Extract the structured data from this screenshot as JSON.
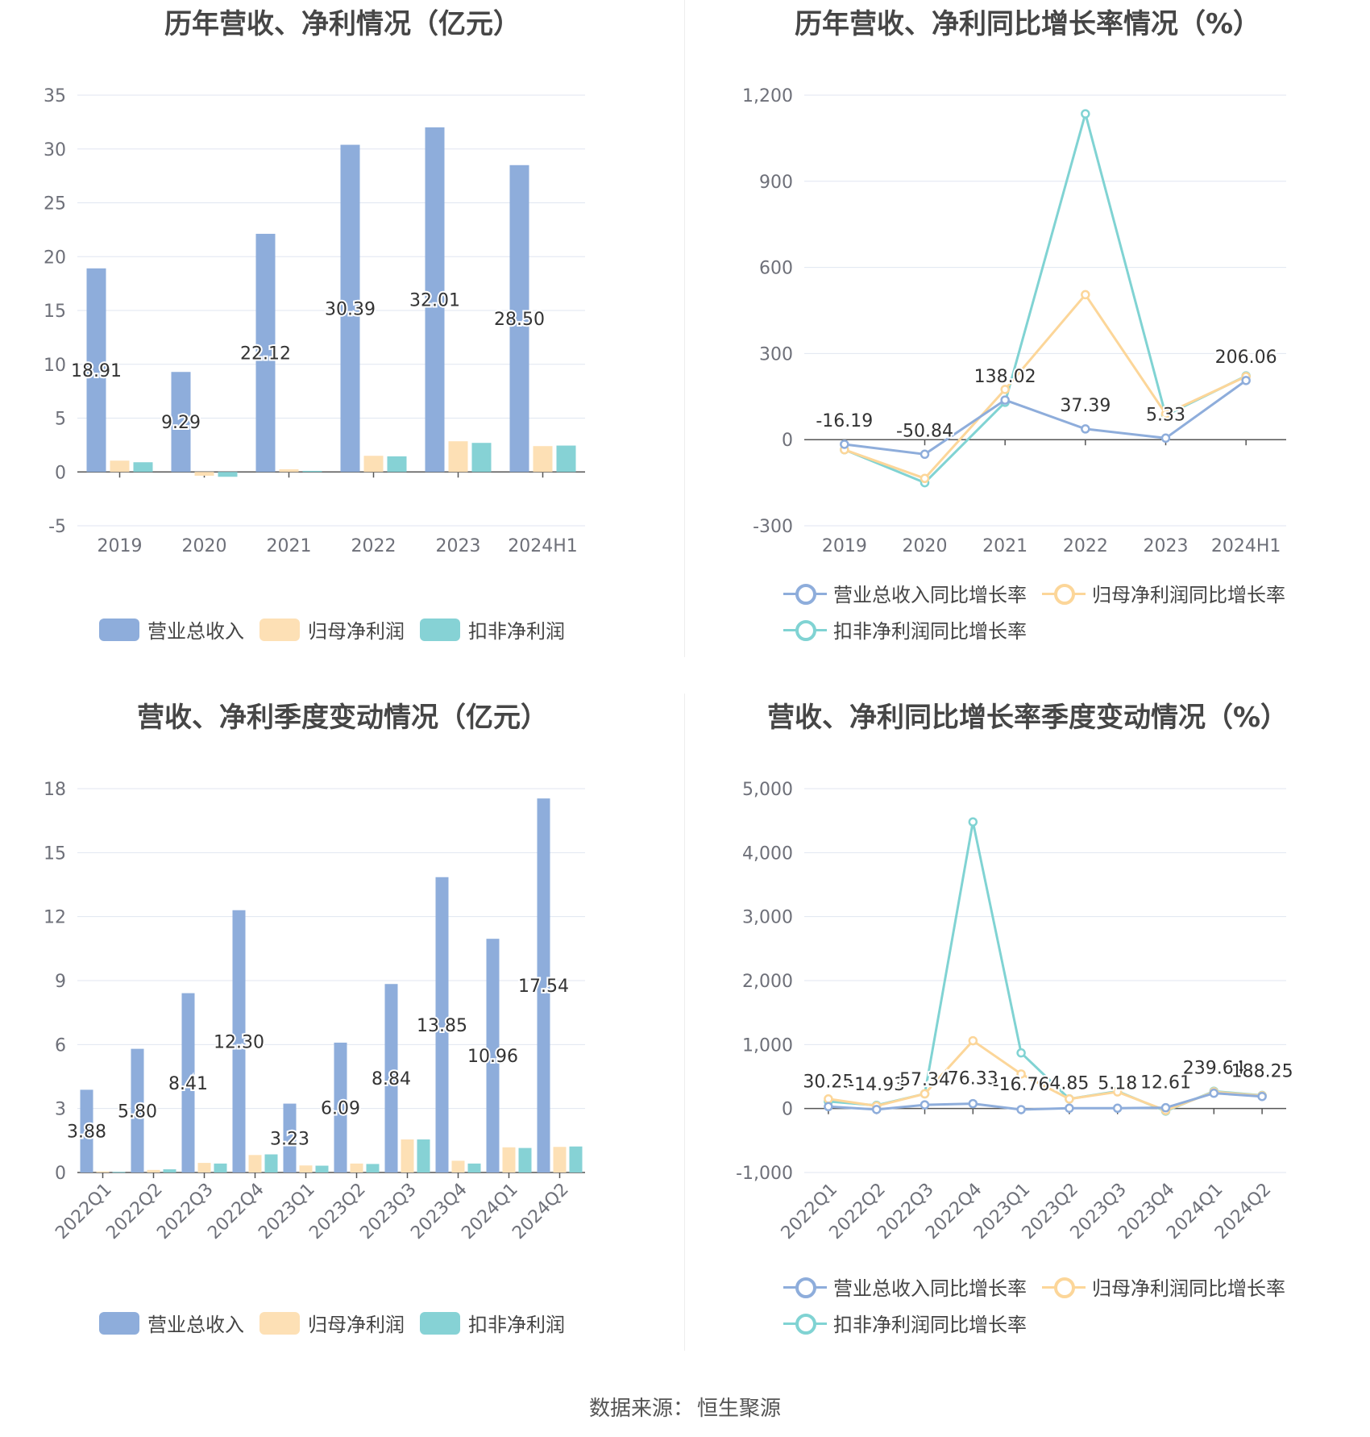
{
  "source": {
    "label": "数据来源：",
    "name": "恒生聚源"
  },
  "colors": {
    "revenue": "#8eaddb",
    "netprofit": "#fde0b5",
    "deducted": "#86d2d5",
    "revenue_line": "#8eaddb",
    "netprofit_line": "#fcd699",
    "deducted_line": "#80d3d3"
  },
  "chart_data": [
    {
      "type": "bar",
      "title": "历年营收、净利情况（亿元）",
      "categories": [
        "2019",
        "2020",
        "2021",
        "2022",
        "2023",
        "2024H1"
      ],
      "ylim": [
        -5,
        35
      ],
      "yticks": [
        35,
        30,
        25,
        20,
        15,
        10,
        5,
        0,
        -5
      ],
      "series": [
        {
          "name": "营业总收入",
          "values": [
            18.91,
            9.29,
            22.12,
            30.39,
            32.01,
            28.5
          ],
          "labels": [
            "18.91",
            "9.29",
            "22.12",
            "30.39",
            "32.01",
            "28.50"
          ]
        },
        {
          "name": "归母净利润",
          "values": [
            1.05,
            -0.35,
            0.25,
            1.5,
            2.85,
            2.4
          ]
        },
        {
          "name": "扣非净利润",
          "values": [
            0.9,
            -0.45,
            0.1,
            1.45,
            2.7,
            2.45
          ]
        }
      ],
      "legend": [
        "营业总收入",
        "归母净利润",
        "扣非净利润"
      ]
    },
    {
      "type": "line",
      "title": "历年营收、净利同比增长率情况（%）",
      "categories": [
        "2019",
        "2020",
        "2021",
        "2022",
        "2023",
        "2024H1"
      ],
      "ylim": [
        -300,
        1200
      ],
      "yticks": [
        "1,200",
        "900",
        "600",
        "300",
        "0",
        "-300"
      ],
      "ytick_values": [
        1200,
        900,
        600,
        300,
        0,
        -300
      ],
      "series": [
        {
          "name": "营业总收入同比增长率",
          "values": [
            -16.19,
            -50.84,
            138.02,
            37.39,
            5.33,
            206.06
          ],
          "labels": [
            "-16.19",
            "-50.84",
            "138.02",
            "37.39",
            "5.33",
            "206.06"
          ]
        },
        {
          "name": "归母净利润同比增长率",
          "values": [
            -35,
            -135,
            175,
            505,
            90,
            220
          ]
        },
        {
          "name": "扣非净利润同比增长率",
          "values": [
            -35,
            -150,
            130,
            1135,
            85,
            222
          ]
        }
      ],
      "legend": [
        "营业总收入同比增长率",
        "归母净利润同比增长率",
        "扣非净利润同比增长率"
      ]
    },
    {
      "type": "bar",
      "title": "营收、净利季度变动情况（亿元）",
      "categories": [
        "2022Q1",
        "2022Q2",
        "2022Q3",
        "2022Q4",
        "2023Q1",
        "2023Q2",
        "2023Q3",
        "2023Q4",
        "2024Q1",
        "2024Q2"
      ],
      "ylim": [
        0,
        18
      ],
      "yticks": [
        18,
        15,
        12,
        9,
        6,
        3,
        0
      ],
      "series": [
        {
          "name": "营业总收入",
          "values": [
            3.88,
            5.8,
            8.41,
            12.3,
            3.23,
            6.09,
            8.84,
            13.85,
            10.96,
            17.54
          ],
          "labels": [
            "3.88",
            "5.80",
            "8.41",
            "12.30",
            "3.23",
            "6.09",
            "8.84",
            "13.85",
            "10.96",
            "17.54"
          ]
        },
        {
          "name": "归母净利润",
          "values": [
            0.05,
            0.12,
            0.45,
            0.82,
            0.33,
            0.42,
            1.55,
            0.55,
            1.18,
            1.2
          ]
        },
        {
          "name": "扣非净利润",
          "values": [
            0.03,
            0.15,
            0.42,
            0.85,
            0.32,
            0.4,
            1.55,
            0.42,
            1.15,
            1.22
          ]
        }
      ],
      "legend": [
        "营业总收入",
        "归母净利润",
        "扣非净利润"
      ]
    },
    {
      "type": "line",
      "title": "营收、净利同比增长率季度变动情况（%）",
      "categories": [
        "2022Q1",
        "2022Q2",
        "2022Q3",
        "2022Q4",
        "2023Q1",
        "2023Q2",
        "2023Q3",
        "2023Q4",
        "2024Q1",
        "2024Q2"
      ],
      "ylim": [
        -1000,
        5000
      ],
      "yticks": [
        "5,000",
        "4,000",
        "3,000",
        "2,000",
        "1,000",
        "0",
        "-1,000"
      ],
      "ytick_values": [
        5000,
        4000,
        3000,
        2000,
        1000,
        0,
        -1000
      ],
      "series": [
        {
          "name": "营业总收入同比增长率",
          "values": [
            30.25,
            -14.93,
            57.34,
            76.33,
            -16.76,
            4.85,
            5.18,
            12.61,
            239.64,
            188.25
          ],
          "labels": [
            "30.25",
            "-14.93",
            "57.34",
            "76.33",
            "-16.76",
            "4.85",
            "5.18",
            "12.61",
            "239.64",
            "188.25"
          ]
        },
        {
          "name": "归母净利润同比增长率",
          "values": [
            150,
            40,
            230,
            1060,
            540,
            150,
            260,
            -30,
            260,
            200
          ]
        },
        {
          "name": "扣非净利润同比增长率",
          "values": [
            110,
            50,
            230,
            4480,
            870,
            150,
            270,
            -40,
            270,
            205
          ]
        }
      ],
      "legend": [
        "营业总收入同比增长率",
        "归母净利润同比增长率",
        "扣非净利润同比增长率"
      ]
    }
  ]
}
